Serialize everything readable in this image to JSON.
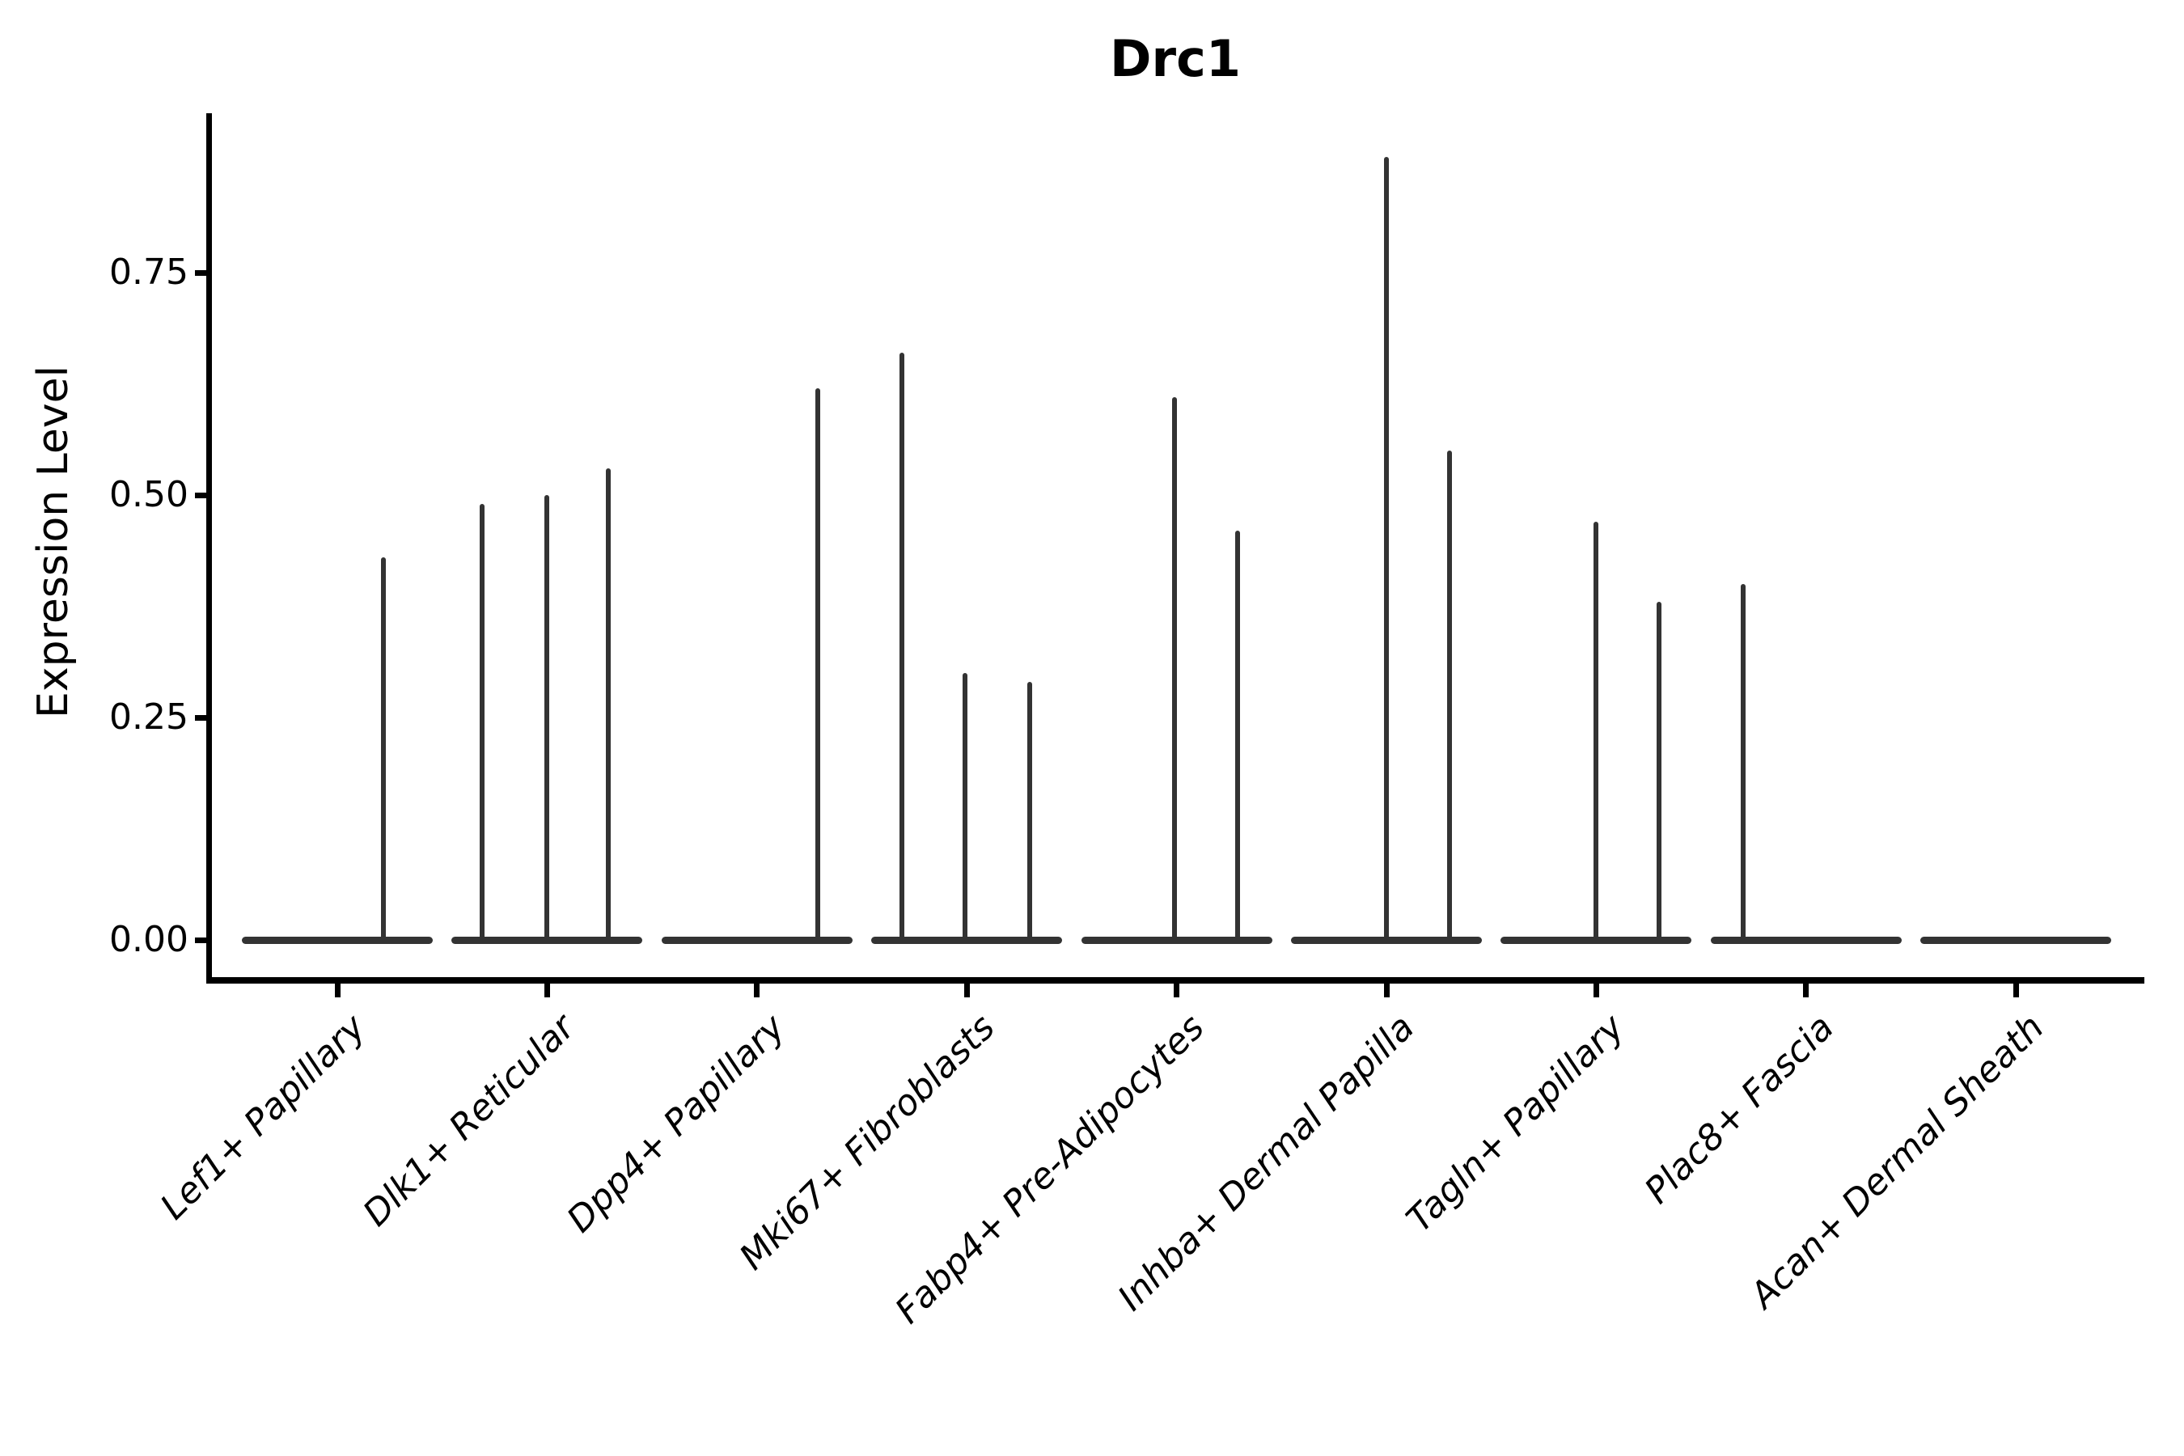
{
  "colors": {
    "background": "#ffffff",
    "axis": "#000000",
    "violin": "#333333",
    "text": "#000000"
  },
  "chart_data": {
    "type": "violin",
    "title": "Drc1",
    "ylabel": "Expression Level",
    "xlabel": "",
    "ylim": [
      -0.04,
      0.93
    ],
    "grid": false,
    "legend": "none",
    "yticks": [
      "0.00",
      "0.25",
      "0.50",
      "0.75"
    ],
    "ytick_values": [
      0.0,
      0.25,
      0.5,
      0.75
    ],
    "categories": [
      "Lef1+ Papillary",
      "Dlk1+ Reticular",
      "Dpp4+ Papillary",
      "Mki67+ Fibroblasts",
      "Fabp4+ Pre-Adipocytes",
      "Inhba+ Dermal Papilla",
      "Tagln+ Papillary",
      "Plac8+ Fascia",
      "Acan+ Dermal Sheath"
    ],
    "series": [
      {
        "name": "Lef1+ Papillary",
        "baseline_value": 0,
        "spikes": [
          {
            "offset": 0.22,
            "value": 0.43
          }
        ]
      },
      {
        "name": "Dlk1+ Reticular",
        "baseline_value": 0,
        "spikes": [
          {
            "offset": -0.31,
            "value": 0.49
          },
          {
            "offset": 0.0,
            "value": 0.5
          },
          {
            "offset": 0.29,
            "value": 0.53
          }
        ]
      },
      {
        "name": "Dpp4+ Papillary",
        "baseline_value": 0,
        "spikes": [
          {
            "offset": 0.29,
            "value": 0.62
          }
        ]
      },
      {
        "name": "Mki67+ Fibroblasts",
        "baseline_value": 0,
        "spikes": [
          {
            "offset": -0.31,
            "value": 0.66
          },
          {
            "offset": -0.01,
            "value": 0.3
          },
          {
            "offset": 0.3,
            "value": 0.29
          }
        ]
      },
      {
        "name": "Fabp4+ Pre-Adipocytes",
        "baseline_value": 0,
        "spikes": [
          {
            "offset": -0.01,
            "value": 0.61
          },
          {
            "offset": 0.29,
            "value": 0.46
          }
        ]
      },
      {
        "name": "Inhba+ Dermal Papilla",
        "baseline_value": 0,
        "spikes": [
          {
            "offset": 0.0,
            "value": 0.88
          },
          {
            "offset": 0.3,
            "value": 0.55
          }
        ]
      },
      {
        "name": "Tagln+ Papillary",
        "baseline_value": 0,
        "spikes": [
          {
            "offset": 0.0,
            "value": 0.47
          },
          {
            "offset": 0.3,
            "value": 0.38
          }
        ]
      },
      {
        "name": "Plac8+ Fascia",
        "baseline_value": 0,
        "spikes": [
          {
            "offset": -0.3,
            "value": 0.4
          }
        ]
      },
      {
        "name": "Acan+ Dermal Sheath",
        "baseline_value": 0,
        "spikes": []
      }
    ]
  }
}
